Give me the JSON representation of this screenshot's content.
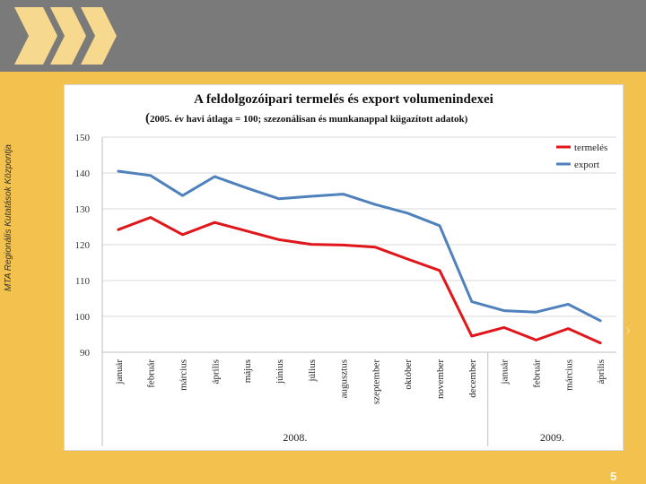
{
  "slide": {
    "side_caption": "MTA Regionális Kutatások Központja",
    "page_number": "5",
    "colors": {
      "background": "#f2c14e",
      "header": "#7a7a7a",
      "logo": "#f6d98e"
    }
  },
  "chart_data": {
    "type": "line",
    "title": "A feldolgozóipari termelés és export volumenindexei",
    "subtitle_paren_open": "(",
    "subtitle": "2005. év havi átlaga = 100; szezonálisan és munkanappal kiigazított adatok)",
    "categories": [
      "január",
      "február",
      "március",
      "április",
      "május",
      "június",
      "július",
      "augusztus",
      "szeptember",
      "október",
      "november",
      "december",
      "január",
      "február",
      "március",
      "április"
    ],
    "year_groups": [
      {
        "label": "2008.",
        "count": 12
      },
      {
        "label": "2009.",
        "count": 4
      }
    ],
    "series": [
      {
        "name": "termelés",
        "color": "#e0161b",
        "values": [
          124.2,
          127.6,
          122.8,
          126.2,
          123.8,
          121.4,
          120.1,
          119.9,
          119.3,
          116.0,
          112.8,
          94.5,
          96.9,
          93.4,
          96.6,
          92.6
        ]
      },
      {
        "name": "export",
        "color": "#4f81bd",
        "values": [
          140.5,
          139.3,
          133.7,
          139.0,
          135.8,
          132.8,
          133.5,
          134.1,
          131.2,
          128.8,
          125.3,
          104.1,
          101.6,
          101.2,
          103.4,
          98.8
        ]
      }
    ],
    "y_ticks": [
      90,
      100,
      110,
      120,
      130,
      140,
      150
    ],
    "ylim": [
      90,
      150
    ],
    "grid": true,
    "legend_position": "top-right"
  }
}
